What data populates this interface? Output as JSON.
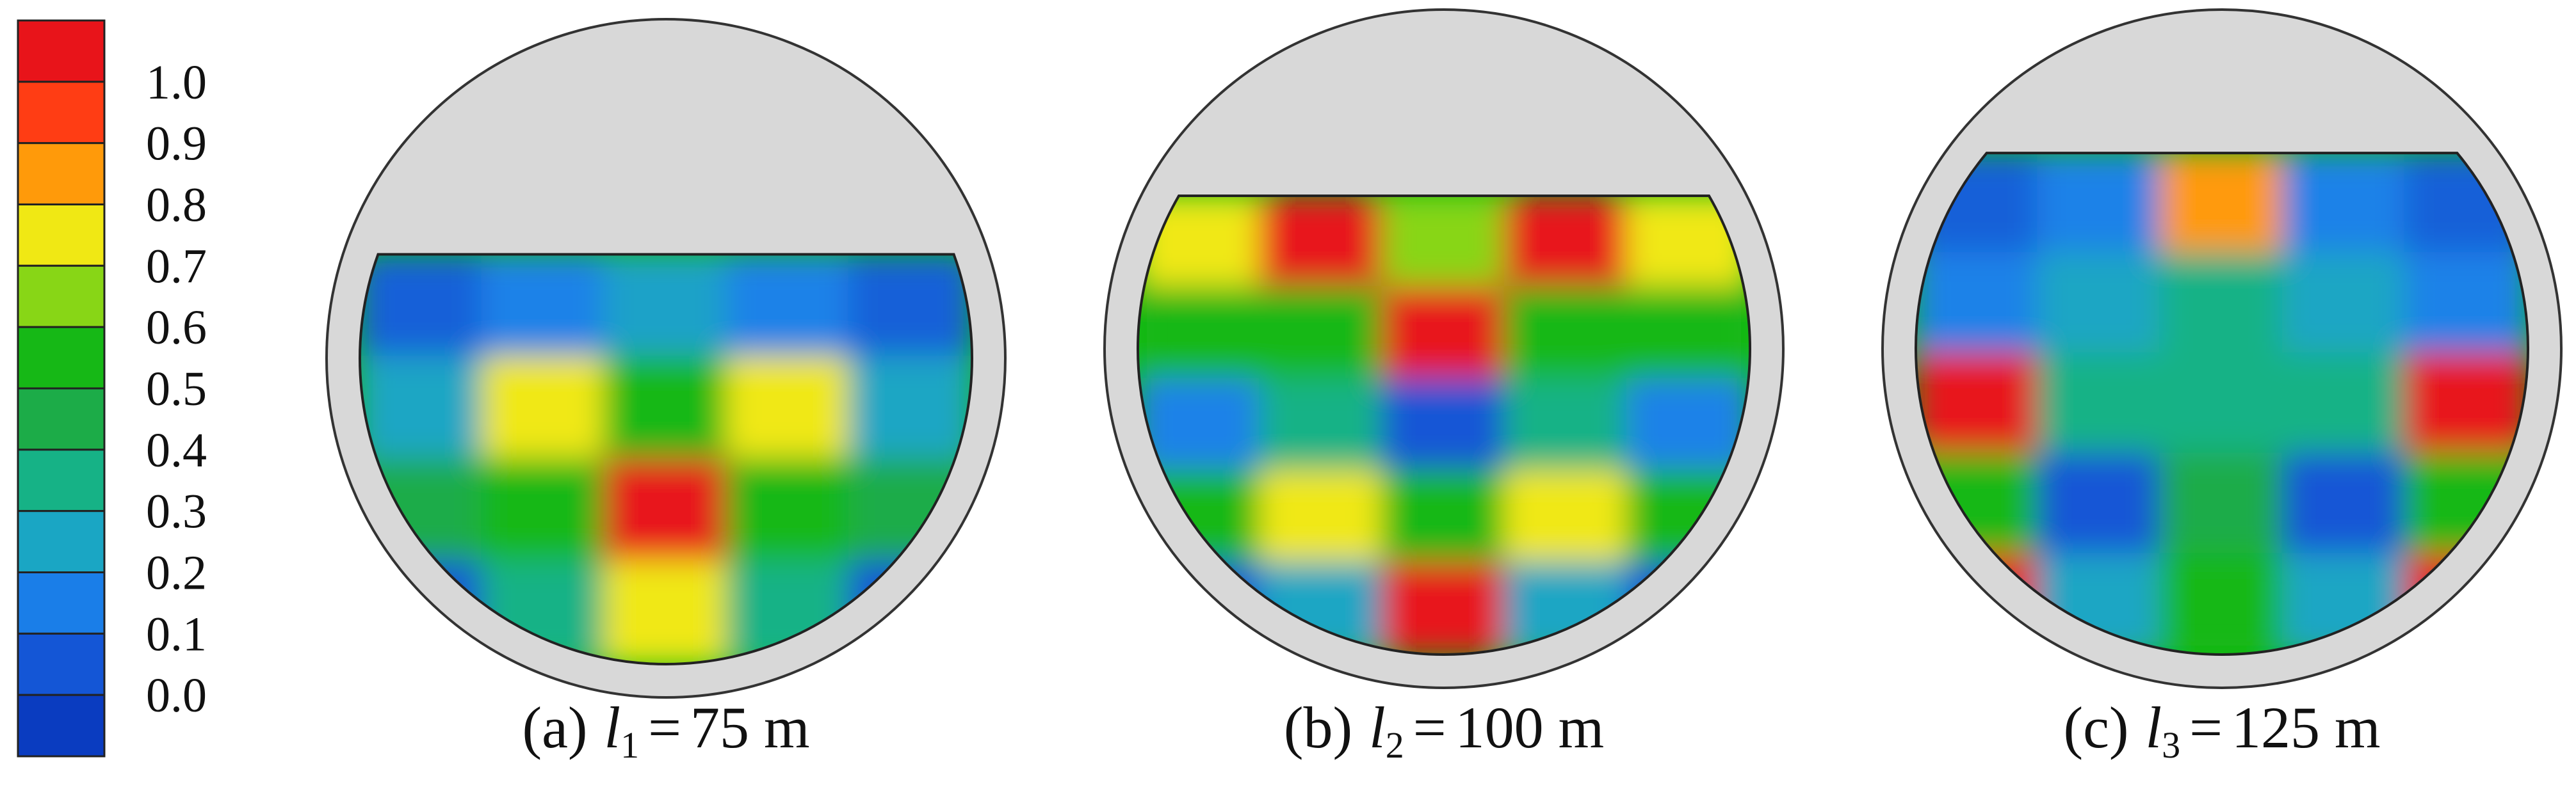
{
  "figure": {
    "colorbar": {
      "labels": [
        "1.0",
        "0.9",
        "0.8",
        "0.7",
        "0.6",
        "0.5",
        "0.4",
        "0.3",
        "0.2",
        "0.1",
        "0.0"
      ],
      "colors_top_to_bottom": [
        "#e8141a",
        "#ff3d14",
        "#ff9a0a",
        "#f0e814",
        "#88d616",
        "#16b816",
        "#1cac48",
        "#16b286",
        "#1aa6c4",
        "#1a7ee8",
        "#1456d6",
        "#0a3cc0"
      ]
    },
    "panels": [
      {
        "letter": "(a)",
        "symbol": "l",
        "subscript": "1",
        "equals": "=",
        "value": "75 m",
        "fill_level": 0.33,
        "field": [
          [
            "#1460d8",
            "#1a82e8",
            "#1aa2c8",
            "#1a82e8",
            "#1460d8"
          ],
          [
            "#1aa6c4",
            "#f0e814",
            "#16b816",
            "#f0e814",
            "#1aa6c4"
          ],
          [
            "#1cac48",
            "#16b816",
            "#e8141a",
            "#16b816",
            "#1cac48"
          ],
          [
            "#1456d6",
            "#16b286",
            "#f0e814",
            "#16b286",
            "#1456d6"
          ]
        ]
      },
      {
        "letter": "(b)",
        "symbol": "l",
        "subscript": "2",
        "equals": "=",
        "value": "100 m",
        "fill_level": 0.25,
        "field": [
          [
            "#f0e814",
            "#e8141a",
            "#88d616",
            "#e8141a",
            "#f0e814"
          ],
          [
            "#16b816",
            "#16b816",
            "#e8141a",
            "#16b816",
            "#16b816"
          ],
          [
            "#1a82e8",
            "#16b286",
            "#1456d6",
            "#16b286",
            "#1a82e8"
          ],
          [
            "#16b816",
            "#f0e814",
            "#16b816",
            "#f0e814",
            "#16b816"
          ],
          [
            "#1456d6",
            "#1aa6c4",
            "#e8141a",
            "#1aa6c4",
            "#1456d6"
          ]
        ]
      },
      {
        "letter": "(c)",
        "symbol": "l",
        "subscript": "3",
        "equals": "=",
        "value": "125 m",
        "fill_level": 0.18,
        "field": [
          [
            "#1460d8",
            "#1a82e8",
            "#ff9a0a",
            "#1a82e8",
            "#1460d8"
          ],
          [
            "#1a82e8",
            "#1aa6c4",
            "#16b286",
            "#1aa6c4",
            "#1a82e8"
          ],
          [
            "#e8141a",
            "#16b286",
            "#16b286",
            "#16b286",
            "#e8141a"
          ],
          [
            "#16b816",
            "#1456d6",
            "#1cac48",
            "#1456d6",
            "#16b816"
          ],
          [
            "#e8141a",
            "#1aa6c4",
            "#16b816",
            "#1aa6c4",
            "#e8141a"
          ]
        ]
      }
    ]
  }
}
